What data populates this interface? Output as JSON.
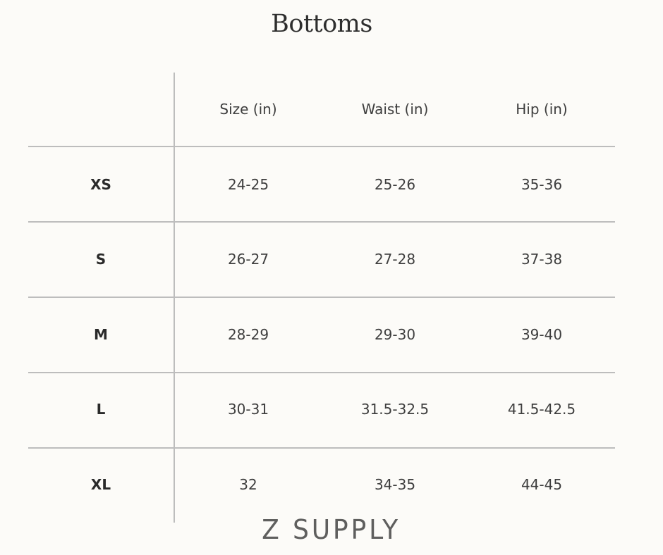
{
  "title": "Bottoms",
  "table": {
    "headers": [
      "",
      "Size (in)",
      "Waist (in)",
      "Hip (in)"
    ],
    "rows": [
      {
        "label": "XS",
        "size": "24-25",
        "waist": "25-26",
        "hip": "35-36"
      },
      {
        "label": "S",
        "size": "26-27",
        "waist": "27-28",
        "hip": "37-38"
      },
      {
        "label": "M",
        "size": "28-29",
        "waist": "29-30",
        "hip": "39-40"
      },
      {
        "label": "L",
        "size": "30-31",
        "waist": "31.5-32.5",
        "hip": "41.5-42.5"
      },
      {
        "label": "XL",
        "size": "32",
        "waist": "34-35",
        "hip": "44-45"
      }
    ]
  },
  "brand": "Z SUPPLY",
  "colors": {
    "background": "#fcfbf8",
    "rule": "#bdbdbd",
    "text": "#3e3e3e"
  }
}
